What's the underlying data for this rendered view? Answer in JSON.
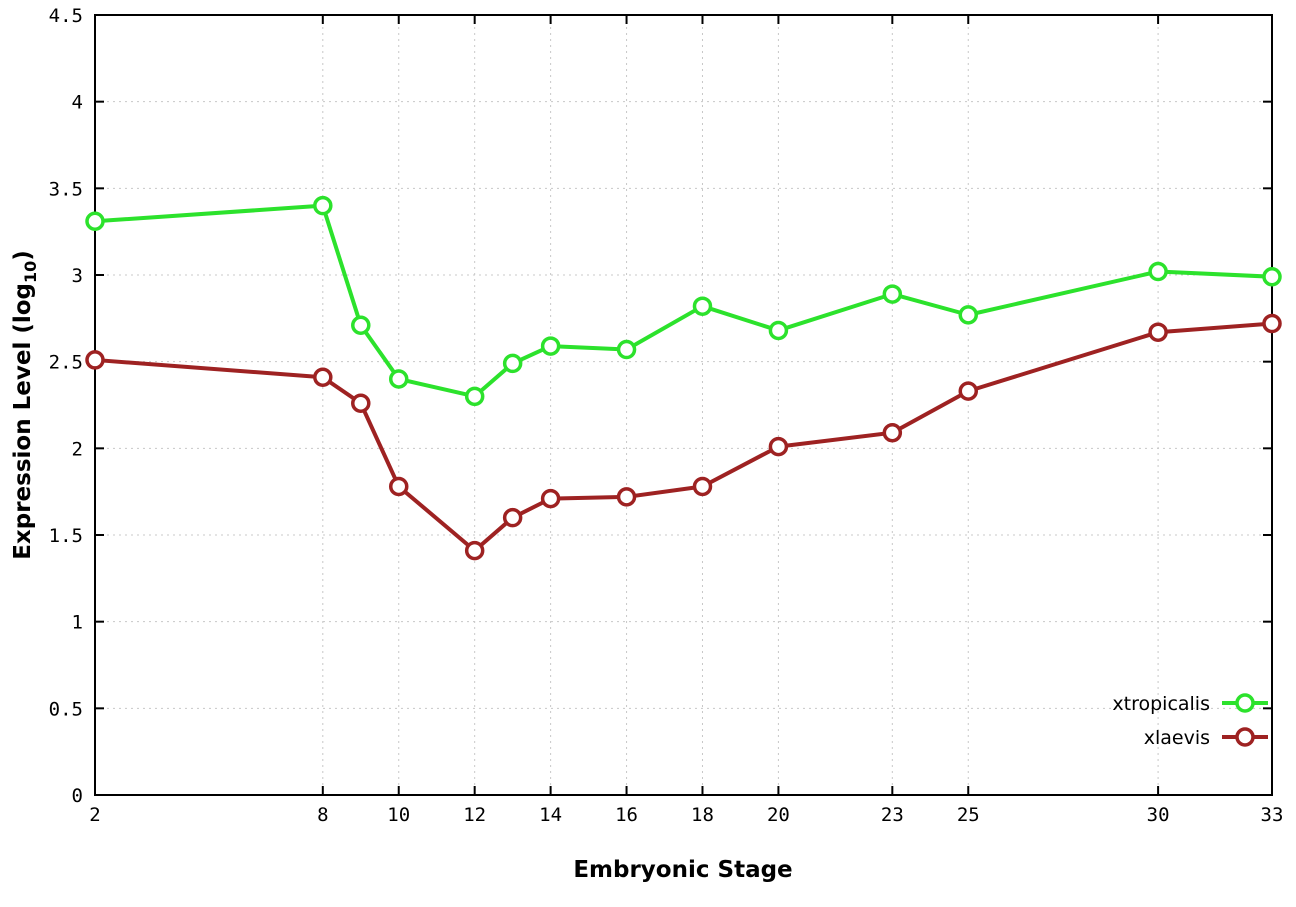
{
  "chart_data": {
    "type": "line",
    "title": "",
    "xlabel": "Embryonic Stage",
    "ylabel": {
      "main": "Expression Level (log",
      "sub": "10",
      "end": ")"
    },
    "x": [
      2,
      8,
      9,
      10,
      12,
      13,
      14,
      16,
      18,
      20,
      23,
      25,
      30,
      33
    ],
    "xlim": [
      2,
      33
    ],
    "ylim": [
      0,
      4.5
    ],
    "x_ticks": [
      2,
      8,
      10,
      12,
      14,
      16,
      18,
      20,
      23,
      25,
      30,
      33
    ],
    "y_ticks": [
      0,
      0.5,
      1,
      1.5,
      2,
      2.5,
      3,
      3.5,
      4,
      4.5
    ],
    "grid": true,
    "legend_position": "bottom-right",
    "marker_style": "open-circle",
    "series": [
      {
        "name": "xtropicalis",
        "color": "#2ce22c",
        "values": [
          3.31,
          3.4,
          2.71,
          2.4,
          2.3,
          2.49,
          2.59,
          2.57,
          2.82,
          2.68,
          2.89,
          2.77,
          3.02,
          2.99
        ]
      },
      {
        "name": "xlaevis",
        "color": "#9e2222",
        "values": [
          2.51,
          2.41,
          2.26,
          1.78,
          1.41,
          1.6,
          1.71,
          1.72,
          1.78,
          2.01,
          2.09,
          2.33,
          2.67,
          2.72
        ]
      }
    ]
  }
}
